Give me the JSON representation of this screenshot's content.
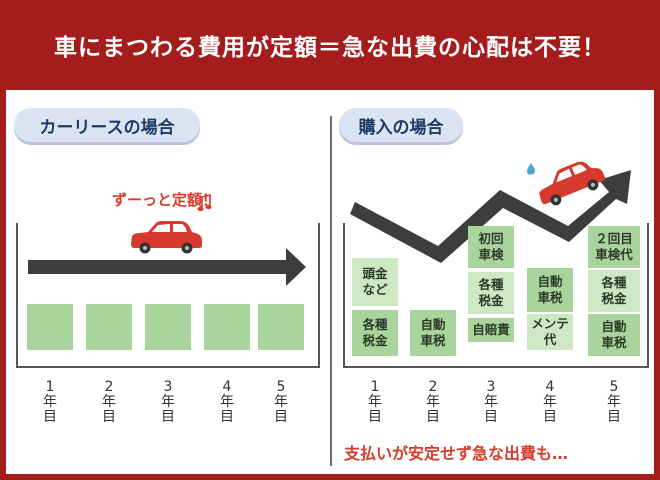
{
  "header": {
    "title": "車にまつわる費用が定額＝急な出費の心配は不要！"
  },
  "lease": {
    "title": "カーリースの場合",
    "note": "ずーっと定額！",
    "years": [
      "1\n年\n目",
      "2\n年\n目",
      "3\n年\n目",
      "4\n年\n目",
      "5\n年\n目"
    ]
  },
  "purchase": {
    "title": "購入の場合",
    "note": "支払いが安定せず急な出費も…",
    "years": [
      "1\n年\n目",
      "2\n年\n目",
      "3\n年\n目",
      "4\n年\n目",
      "5\n年\n目"
    ],
    "costs": [
      [
        "頭金\nなど",
        "各種\n税金"
      ],
      [
        "自動\n車税"
      ],
      [
        "初回\n車検",
        "各種\n税金",
        "自賠責"
      ],
      [
        "自動\n車税",
        "メンテ\n代"
      ],
      [
        "２回目\n車検代",
        "各種\n税金",
        "自動\n車税"
      ]
    ]
  },
  "colors": {
    "accent": "#a51c1c",
    "pill": "#dbe4f2",
    "green": "#a9d49b",
    "arrow": "#3d3d3d",
    "car": "#d63a2e",
    "note": "#d93b2a"
  }
}
